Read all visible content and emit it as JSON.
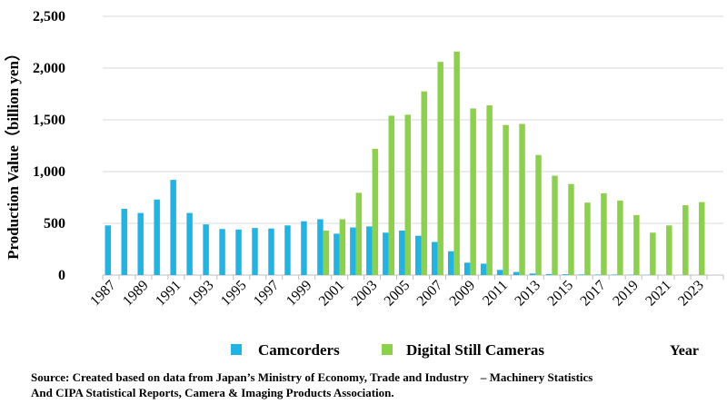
{
  "chart_data": {
    "type": "bar",
    "ylabel": "Production Value（billion yen）",
    "xlabel": "Year",
    "ylim": [
      0,
      2500
    ],
    "yticks": [
      0,
      500,
      1000,
      1500,
      2000,
      2500
    ],
    "ytick_labels": [
      "0",
      "500",
      "1,000",
      "1,500",
      "2,000",
      "2,500"
    ],
    "categories": [
      "1987",
      "1988",
      "1989",
      "1990",
      "1991",
      "1992",
      "1993",
      "1994",
      "1995",
      "1996",
      "1997",
      "1998",
      "1999",
      "2000",
      "2001",
      "2002",
      "2003",
      "2004",
      "2005",
      "2006",
      "2007",
      "2008",
      "2009",
      "2010",
      "2011",
      "2012",
      "2013",
      "2014",
      "2015",
      "2016",
      "2017",
      "2018",
      "2019",
      "2020",
      "2021",
      "2022",
      "2023",
      "2024"
    ],
    "xtick_labels": [
      "1987",
      "1989",
      "1991",
      "1993",
      "1995",
      "1997",
      "1999",
      "2001",
      "2003",
      "2005",
      "2007",
      "2009",
      "2011",
      "2013",
      "2015",
      "2017",
      "2019",
      "2021",
      "2023"
    ],
    "grid": true,
    "legend_position": "bottom",
    "series": [
      {
        "name": "Camcorders",
        "color": "#1fb4e6",
        "values": [
          480,
          640,
          600,
          730,
          920,
          600,
          490,
          445,
          440,
          455,
          450,
          480,
          520,
          540,
          400,
          460,
          470,
          410,
          430,
          380,
          320,
          230,
          120,
          110,
          50,
          30,
          15,
          10,
          8,
          6,
          5,
          5,
          3,
          2,
          0,
          0,
          0,
          0
        ]
      },
      {
        "name": "Digital Still Cameras",
        "color": "#8cd14a",
        "values": [
          0,
          0,
          0,
          0,
          0,
          0,
          0,
          0,
          0,
          0,
          0,
          0,
          0,
          430,
          540,
          795,
          1220,
          1540,
          1550,
          1775,
          2060,
          2160,
          1610,
          1640,
          1450,
          1460,
          1160,
          960,
          880,
          700,
          790,
          720,
          580,
          410,
          480,
          675,
          705,
          0
        ]
      }
    ]
  },
  "source": {
    "line1": "Source: Created based on data from Japan’s Ministry of Economy, Trade and Industry　– Machinery Statistics",
    "line2": "And CIPA Statistical Reports, Camera & Imaging Products Association."
  }
}
